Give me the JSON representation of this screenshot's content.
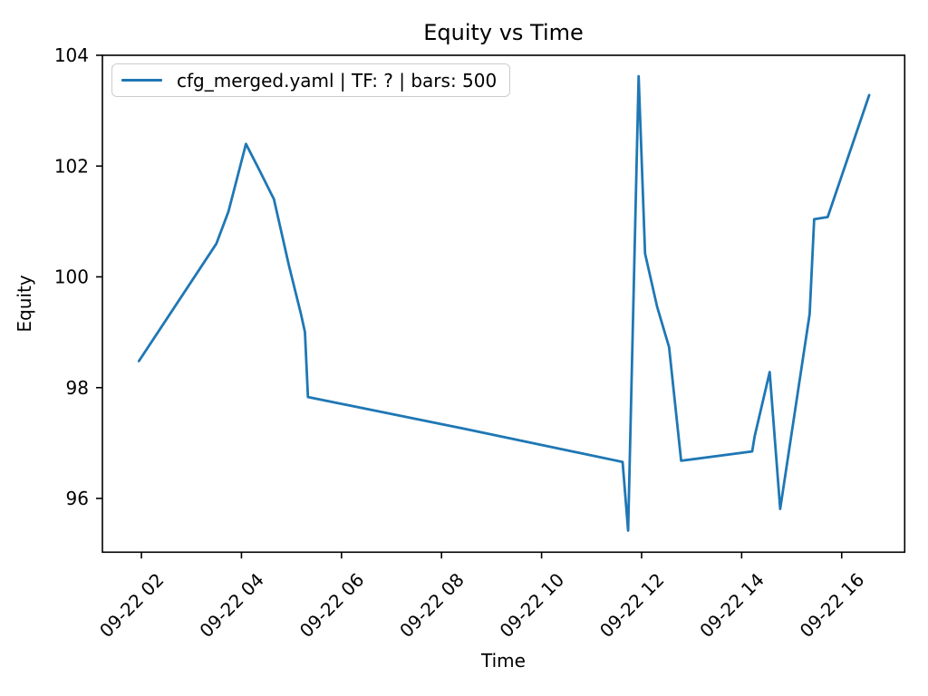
{
  "chart_data": {
    "type": "line",
    "title": "Equity vs Time",
    "xlabel": "Time",
    "ylabel": "Equity",
    "grid": false,
    "legend_location": "upper left",
    "legend": [
      "cfg_merged.yaml | TF: ? | bars: 500"
    ],
    "line_color": "#1f77b4",
    "axis_color": "#000000",
    "xlim_hours": [
      1.22,
      17.26
    ],
    "ylim": [
      95.03,
      104.0
    ],
    "xticks": [
      {
        "hour": 2,
        "label": "09-22 02"
      },
      {
        "hour": 4,
        "label": "09-22 04"
      },
      {
        "hour": 6,
        "label": "09-22 06"
      },
      {
        "hour": 8,
        "label": "09-22 08"
      },
      {
        "hour": 10,
        "label": "09-22 10"
      },
      {
        "hour": 12,
        "label": "09-22 12"
      },
      {
        "hour": 14,
        "label": "09-22 14"
      },
      {
        "hour": 16,
        "label": "09-22 16"
      }
    ],
    "yticks": [
      {
        "value": 96,
        "label": "96"
      },
      {
        "value": 98,
        "label": "98"
      },
      {
        "value": 100,
        "label": "100"
      },
      {
        "value": 102,
        "label": "102"
      },
      {
        "value": 104,
        "label": "104"
      }
    ],
    "series": [
      {
        "name": "cfg_merged.yaml | TF: ? | bars: 500",
        "x_hours": [
          1.95,
          3.5,
          3.74,
          4.09,
          4.35,
          4.65,
          4.95,
          5.19,
          5.27,
          5.33,
          8.5,
          11.62,
          11.73,
          11.94,
          12.07,
          12.31,
          12.55,
          12.79,
          14.21,
          14.26,
          14.56,
          14.77,
          15.36,
          15.45,
          15.72,
          16.55
        ],
        "equity": [
          98.48,
          100.6,
          101.18,
          102.4,
          101.94,
          101.4,
          100.2,
          99.33,
          99.0,
          97.83,
          97.25,
          96.66,
          95.42,
          103.62,
          100.42,
          99.46,
          98.73,
          96.68,
          96.85,
          97.12,
          98.28,
          95.81,
          99.33,
          101.04,
          101.08,
          103.28
        ]
      }
    ]
  }
}
